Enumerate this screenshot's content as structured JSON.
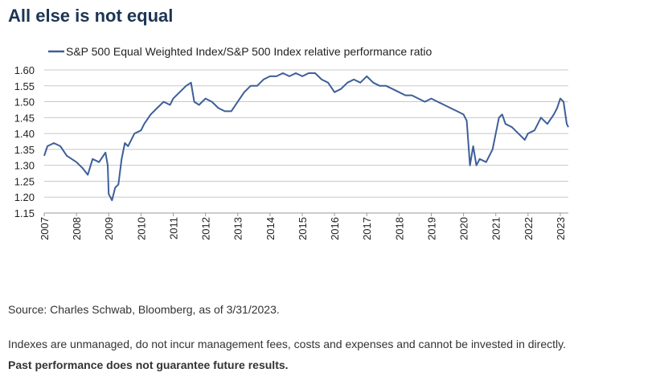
{
  "chart_data": {
    "type": "line",
    "title": "All else is not equal",
    "series": [
      {
        "name": "S&P 500 Equal Weighted Index/S&P 500 Index relative performance ratio",
        "color": "#3d5f99",
        "x": [
          2007.0,
          2007.1,
          2007.3,
          2007.5,
          2007.7,
          2008.0,
          2008.2,
          2008.35,
          2008.5,
          2008.7,
          2008.9,
          2008.97,
          2009.0,
          2009.1,
          2009.2,
          2009.3,
          2009.4,
          2009.5,
          2009.6,
          2009.8,
          2010.0,
          2010.1,
          2010.3,
          2010.5,
          2010.7,
          2010.9,
          2011.0,
          2011.2,
          2011.4,
          2011.55,
          2011.65,
          2011.8,
          2012.0,
          2012.2,
          2012.4,
          2012.6,
          2012.8,
          2013.0,
          2013.2,
          2013.4,
          2013.6,
          2013.8,
          2014.0,
          2014.2,
          2014.4,
          2014.6,
          2014.8,
          2015.0,
          2015.2,
          2015.4,
          2015.6,
          2015.8,
          2016.0,
          2016.2,
          2016.4,
          2016.6,
          2016.8,
          2017.0,
          2017.2,
          2017.4,
          2017.6,
          2017.8,
          2018.0,
          2018.2,
          2018.4,
          2018.6,
          2018.8,
          2019.0,
          2019.2,
          2019.4,
          2019.6,
          2019.8,
          2020.0,
          2020.1,
          2020.2,
          2020.3,
          2020.4,
          2020.5,
          2020.7,
          2020.9,
          2021.0,
          2021.1,
          2021.2,
          2021.3,
          2021.5,
          2021.7,
          2021.9,
          2022.0,
          2022.2,
          2022.4,
          2022.5,
          2022.6,
          2022.8,
          2022.9,
          2023.0,
          2023.1,
          2023.2,
          2023.25
        ],
        "values": [
          1.33,
          1.36,
          1.37,
          1.36,
          1.33,
          1.31,
          1.29,
          1.27,
          1.32,
          1.31,
          1.34,
          1.3,
          1.21,
          1.19,
          1.23,
          1.24,
          1.32,
          1.37,
          1.36,
          1.4,
          1.41,
          1.43,
          1.46,
          1.48,
          1.5,
          1.49,
          1.51,
          1.53,
          1.55,
          1.56,
          1.5,
          1.49,
          1.51,
          1.5,
          1.48,
          1.47,
          1.47,
          1.5,
          1.53,
          1.55,
          1.55,
          1.57,
          1.58,
          1.58,
          1.59,
          1.58,
          1.59,
          1.58,
          1.59,
          1.59,
          1.57,
          1.56,
          1.53,
          1.54,
          1.56,
          1.57,
          1.56,
          1.58,
          1.56,
          1.55,
          1.55,
          1.54,
          1.53,
          1.52,
          1.52,
          1.51,
          1.5,
          1.51,
          1.5,
          1.49,
          1.48,
          1.47,
          1.46,
          1.44,
          1.3,
          1.36,
          1.3,
          1.32,
          1.31,
          1.35,
          1.4,
          1.45,
          1.46,
          1.43,
          1.42,
          1.4,
          1.38,
          1.4,
          1.41,
          1.45,
          1.44,
          1.43,
          1.46,
          1.48,
          1.51,
          1.5,
          1.43,
          1.42
        ]
      }
    ],
    "xlim": [
      2007,
      2023.25
    ],
    "xticks": [
      2007,
      2008,
      2009,
      2010,
      2011,
      2012,
      2013,
      2014,
      2015,
      2016,
      2017,
      2018,
      2019,
      2020,
      2021,
      2022,
      2023
    ],
    "ylim": [
      1.15,
      1.6
    ],
    "yticks": [
      {
        "value": 1.15,
        "label": "1.15"
      },
      {
        "value": 1.2,
        "label": "1.20"
      },
      {
        "value": 1.25,
        "label": "1.25"
      },
      {
        "value": 1.3,
        "label": "1.30"
      },
      {
        "value": 1.35,
        "label": "1.35"
      },
      {
        "value": 1.4,
        "label": "1.40"
      },
      {
        "value": 1.45,
        "label": "1.45"
      },
      {
        "value": 1.5,
        "label": "1.50"
      },
      {
        "value": 1.55,
        "label": "1.55"
      },
      {
        "value": 1.6,
        "label": "1.60"
      }
    ],
    "grid": true,
    "source": "Source: Charles Schwab, Bloomberg, as of 3/31/2023.",
    "notes": [
      "Indexes are unmanaged, do not incur management fees, costs and expenses and cannot be invested in directly.",
      "Past performance does not guarantee future results."
    ]
  }
}
